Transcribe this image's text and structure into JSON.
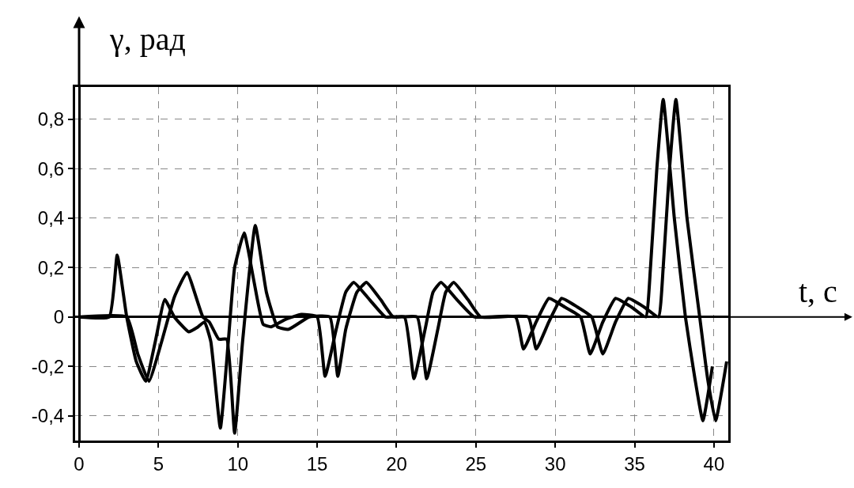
{
  "chart_data": {
    "type": "line",
    "xlabel": "t, с",
    "ylabel": "γ, рад",
    "xlim": [
      -0.25,
      40.9
    ],
    "ylim": [
      -0.5,
      0.93
    ],
    "xticks": [
      0,
      5,
      10,
      15,
      20,
      25,
      30,
      35,
      40
    ],
    "yticks": [
      {
        "value": -0.4,
        "label": "-0,4"
      },
      {
        "value": -0.2,
        "label": "-0,2"
      },
      0,
      {
        "value": 0.2,
        "label": "0,2"
      },
      {
        "value": 0.4,
        "label": "0,4"
      },
      {
        "value": 0.6,
        "label": "0,6"
      },
      {
        "value": 0.8,
        "label": "0,8"
      }
    ],
    "grid": true,
    "marker": "none",
    "line_style": "solid",
    "series": [
      {
        "color": "#000000",
        "x": [
          0,
          1.9,
          2.4,
          3.0,
          3.6,
          4.2,
          4.8,
          5.4,
          6.0,
          6.9,
          7.5,
          7.9,
          8.3,
          8.9,
          9.4,
          9.8,
          10.4,
          11.0,
          11.6,
          12.1,
          13.0,
          14.0,
          15.0,
          15.5,
          16.2,
          16.8,
          17.3,
          18.3,
          19.3,
          20.5,
          21.1,
          21.8,
          22.3,
          22.8,
          23.8,
          24.9,
          27.5,
          28.0,
          28.8,
          29.6,
          30.6,
          31.6,
          32.2,
          33.0,
          33.8,
          34.8,
          35.7,
          36.0,
          36.4,
          36.8,
          37.5,
          38.2,
          38.8,
          39.3,
          39.9
        ],
        "values": [
          0,
          0,
          0.25,
          0,
          -0.18,
          -0.26,
          -0.1,
          0.07,
          0,
          -0.06,
          -0.04,
          -0.02,
          -0.1,
          -0.45,
          -0.1,
          0.2,
          0.34,
          0.15,
          -0.03,
          -0.04,
          -0.01,
          0.01,
          0,
          -0.24,
          -0.05,
          0.1,
          0.14,
          0.07,
          0,
          0,
          -0.25,
          -0.05,
          0.1,
          0.14,
          0.07,
          0,
          0,
          -0.13,
          -0.02,
          0.075,
          0.04,
          0,
          -0.15,
          -0.02,
          0.075,
          0.04,
          0,
          0.2,
          0.6,
          0.88,
          0.4,
          0,
          -0.25,
          -0.42,
          -0.2
        ]
      },
      {
        "color": "#000000",
        "x": [
          0,
          3.0,
          3.7,
          4.4,
          5.2,
          6.0,
          6.8,
          7.8,
          8.2,
          8.8,
          9.3,
          9.8,
          10.3,
          11.1,
          11.8,
          12.5,
          13.2,
          14.5,
          15.8,
          16.3,
          16.8,
          17.5,
          18.1,
          19.0,
          19.8,
          21.3,
          21.9,
          22.6,
          23.1,
          23.6,
          24.5,
          25.3,
          28.3,
          28.8,
          29.6,
          30.4,
          31.4,
          32.3,
          33.0,
          33.8,
          34.6,
          35.6,
          36.5,
          36.8,
          37.2,
          37.6,
          38.3,
          39.1,
          39.6,
          40.1,
          40.8
        ],
        "values": [
          0,
          0,
          -0.15,
          -0.26,
          -0.1,
          0.08,
          0.18,
          0,
          -0.02,
          -0.09,
          -0.09,
          -0.47,
          -0.1,
          0.37,
          0.1,
          -0.04,
          -0.05,
          0,
          0,
          -0.24,
          -0.05,
          0.1,
          0.14,
          0.07,
          0,
          0,
          -0.25,
          -0.05,
          0.1,
          0.14,
          0.07,
          0,
          0,
          -0.13,
          -0.02,
          0.075,
          0.04,
          0,
          -0.15,
          -0.02,
          0.075,
          0.04,
          0,
          0.2,
          0.6,
          0.88,
          0.4,
          0,
          -0.25,
          -0.42,
          -0.18
        ]
      }
    ]
  }
}
